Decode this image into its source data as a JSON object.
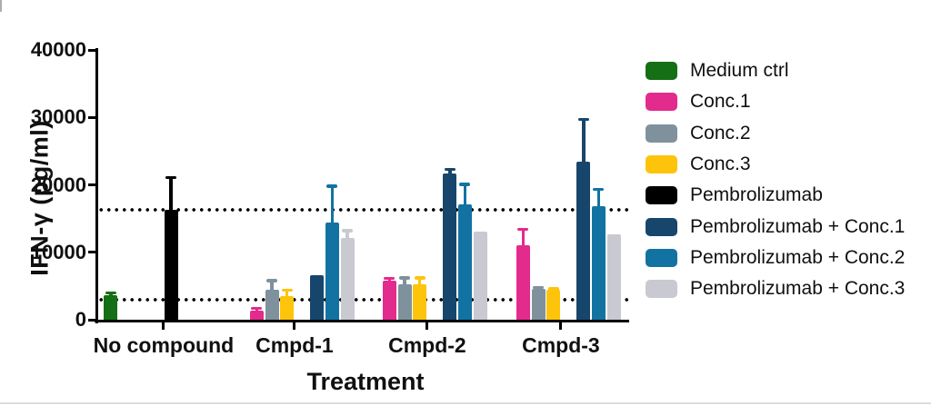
{
  "chart_data": {
    "type": "bar",
    "title": "",
    "xlabel": "Treatment",
    "ylabel": "IFN-γ (pg/ml)",
    "ylim": [
      0,
      40000
    ],
    "yticks": [
      0,
      10000,
      20000,
      30000,
      40000
    ],
    "categories": [
      "No compound",
      "Cmpd-1",
      "Cmpd-2",
      "Cmpd-3"
    ],
    "series": [
      {
        "name": "Medium ctrl",
        "color": "#156f15",
        "slot": 0,
        "values": [
          3700,
          null,
          null,
          null
        ],
        "errors_top": [
          4100,
          null,
          null,
          null
        ]
      },
      {
        "name": "Conc.1",
        "color": "#e32b8d",
        "slot": 1,
        "values": [
          null,
          1400,
          5800,
          11100
        ],
        "errors_top": [
          null,
          1800,
          6200,
          13500
        ]
      },
      {
        "name": "Conc.2",
        "color": "#7f919c",
        "slot": 2,
        "values": [
          null,
          4400,
          5200,
          4600
        ],
        "errors_top": [
          null,
          5900,
          6300,
          4900
        ]
      },
      {
        "name": "Conc.3",
        "color": "#fdc40b",
        "slot": 3,
        "values": [
          null,
          3500,
          5200,
          4500
        ],
        "errors_top": [
          null,
          4500,
          6300,
          4700
        ]
      },
      {
        "name": "Pembrolizumab",
        "color": "#000000",
        "slot": 4,
        "values": [
          16300,
          null,
          null,
          null
        ],
        "errors_top": [
          21200,
          null,
          null,
          null
        ]
      },
      {
        "name": "Pembrolizumab + Conc.1",
        "color": "#17466d",
        "slot": 5,
        "values": [
          null,
          6600,
          21700,
          23400
        ],
        "errors_top": [
          null,
          null,
          22400,
          29800
        ]
      },
      {
        "name": "Pembrolizumab + Conc.2",
        "color": "#1273a2",
        "slot": 6,
        "values": [
          null,
          14400,
          17100,
          16800
        ],
        "errors_top": [
          null,
          19900,
          20200,
          19400
        ]
      },
      {
        "name": "Pembrolizumab + Conc.3",
        "color": "#c8c9d1",
        "slot": 7,
        "values": [
          null,
          12100,
          13100,
          12700
        ],
        "errors_top": [
          null,
          13300,
          null,
          null
        ]
      }
    ],
    "reference_lines": [
      16300,
      2900
    ],
    "legend_position": "right",
    "grid": false,
    "text_color": "#101010",
    "axis_color": "#000000"
  }
}
